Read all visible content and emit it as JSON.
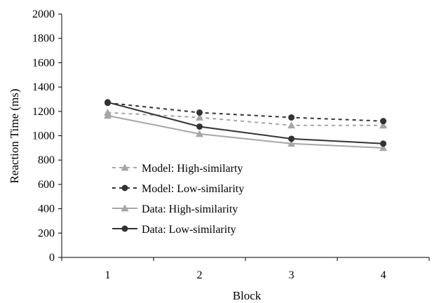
{
  "chart_data": {
    "type": "line",
    "title": "",
    "xlabel": "Block",
    "ylabel": "Reaction Time (ms)",
    "categories": [
      "1",
      "2",
      "3",
      "4"
    ],
    "ylim": [
      0,
      2000
    ],
    "yticks": [
      "0",
      "200",
      "400",
      "600",
      "800",
      "1000",
      "1200",
      "1400",
      "1600",
      "1800",
      "2000"
    ],
    "grid": false,
    "legend_position": "left",
    "series": [
      {
        "name": "Model: High-similarty",
        "values": [
          1190,
          1150,
          1085,
          1085
        ],
        "color": "#a6a6a6",
        "line": "dashed",
        "marker": "triangle"
      },
      {
        "name": "Model: Low-similarity",
        "values": [
          1270,
          1190,
          1150,
          1120
        ],
        "color": "#333333",
        "line": "dashed",
        "marker": "circle"
      },
      {
        "name": "Data: High-similarity",
        "values": [
          1165,
          1015,
          935,
          900
        ],
        "color": "#a6a6a6",
        "line": "solid",
        "marker": "triangle"
      },
      {
        "name": "Data: Low-similarity",
        "values": [
          1275,
          1075,
          975,
          935
        ],
        "color": "#333333",
        "line": "solid",
        "marker": "circle"
      }
    ]
  }
}
